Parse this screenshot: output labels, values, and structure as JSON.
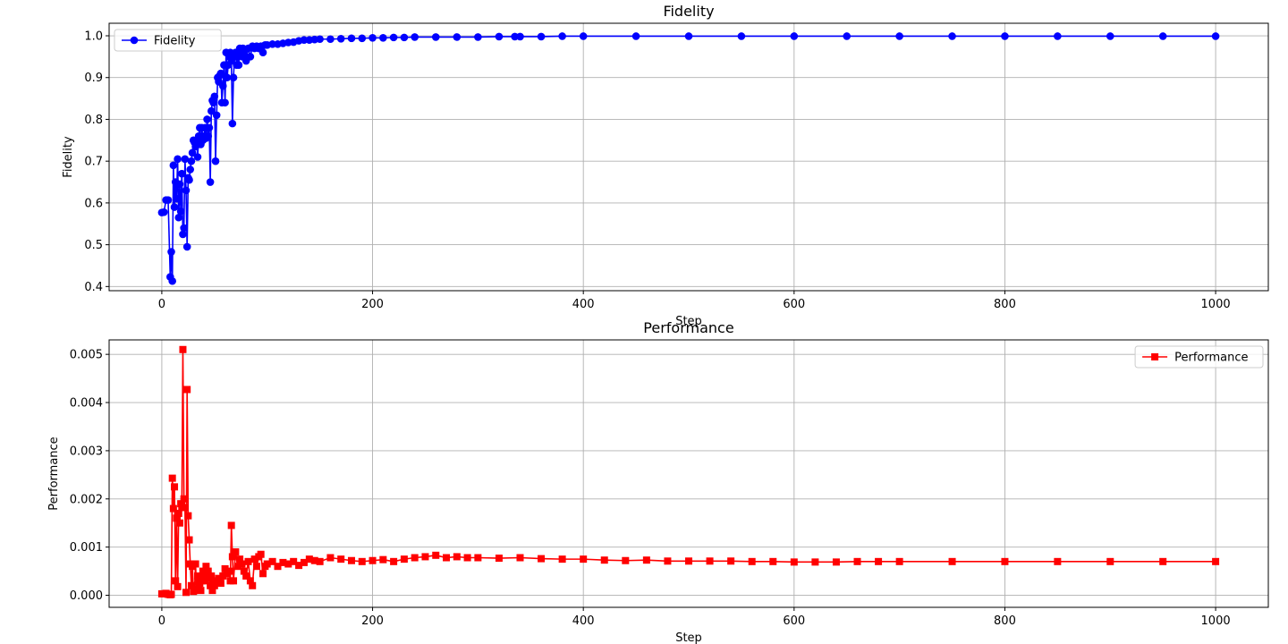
{
  "chart_data": [
    {
      "type": "line",
      "title": "Fidelity",
      "xlabel": "Step",
      "ylabel": "Fidelity",
      "xlim": [
        -50,
        1050
      ],
      "ylim": [
        0.39,
        1.03
      ],
      "xticks": [
        0,
        200,
        400,
        600,
        800,
        1000
      ],
      "yticks": [
        0.4,
        0.5,
        0.6,
        0.7,
        0.8,
        0.9,
        1.0
      ],
      "ytick_labels": [
        "0.4",
        "0.5",
        "0.6",
        "0.7",
        "0.8",
        "0.9",
        "1.0"
      ],
      "grid": true,
      "legend_position": "upper left",
      "series": [
        {
          "name": "Fidelity",
          "color": "#0000ff",
          "marker": "circle",
          "x": [
            0,
            2,
            4,
            6,
            8,
            9,
            10,
            11,
            12,
            13,
            14,
            15,
            16,
            17,
            18,
            19,
            20,
            21,
            22,
            23,
            24,
            25,
            26,
            27,
            28,
            29,
            30,
            31,
            32,
            33,
            34,
            35,
            36,
            37,
            38,
            39,
            40,
            41,
            42,
            43,
            44,
            45,
            46,
            47,
            48,
            49,
            50,
            51,
            52,
            53,
            54,
            55,
            56,
            57,
            58,
            59,
            60,
            61,
            62,
            63,
            64,
            65,
            66,
            67,
            68,
            69,
            70,
            71,
            72,
            73,
            74,
            75,
            76,
            77,
            78,
            79,
            80,
            82,
            84,
            86,
            88,
            90,
            92,
            94,
            96,
            98,
            100,
            105,
            110,
            115,
            120,
            125,
            130,
            135,
            140,
            145,
            150,
            160,
            170,
            180,
            190,
            200,
            210,
            220,
            230,
            240,
            260,
            280,
            300,
            320,
            335,
            340,
            360,
            380,
            400,
            450,
            500,
            550,
            600,
            650,
            700,
            750,
            800,
            850,
            900,
            950,
            1000
          ],
          "y": [
            0.577,
            0.578,
            0.607,
            0.607,
            0.423,
            0.483,
            0.413,
            0.69,
            0.59,
            0.65,
            0.61,
            0.705,
            0.565,
            0.645,
            0.58,
            0.67,
            0.525,
            0.54,
            0.705,
            0.63,
            0.495,
            0.66,
            0.655,
            0.68,
            0.7,
            0.72,
            0.75,
            0.745,
            0.735,
            0.75,
            0.71,
            0.76,
            0.78,
            0.74,
            0.78,
            0.75,
            0.76,
            0.78,
            0.755,
            0.8,
            0.76,
            0.78,
            0.65,
            0.82,
            0.845,
            0.84,
            0.855,
            0.7,
            0.81,
            0.9,
            0.89,
            0.905,
            0.91,
            0.84,
            0.88,
            0.93,
            0.84,
            0.96,
            0.9,
            0.93,
            0.95,
            0.96,
            0.94,
            0.79,
            0.9,
            0.95,
            0.96,
            0.93,
            0.96,
            0.93,
            0.97,
            0.96,
            0.95,
            0.97,
            0.96,
            0.965,
            0.94,
            0.97,
            0.95,
            0.975,
            0.97,
            0.975,
            0.97,
            0.975,
            0.96,
            0.978,
            0.978,
            0.98,
            0.98,
            0.982,
            0.984,
            0.985,
            0.988,
            0.99,
            0.99,
            0.991,
            0.992,
            0.992,
            0.993,
            0.994,
            0.994,
            0.995,
            0.995,
            0.996,
            0.996,
            0.997,
            0.997,
            0.997,
            0.997,
            0.998,
            0.998,
            0.998,
            0.998,
            0.999,
            0.999,
            0.999,
            0.999,
            0.999,
            0.999,
            0.999,
            0.999,
            0.999,
            0.999,
            0.999,
            0.999,
            0.999,
            0.999
          ]
        }
      ]
    },
    {
      "type": "line",
      "title": "Performance",
      "xlabel": "Step",
      "ylabel": "Performance",
      "xlim": [
        -50,
        1050
      ],
      "ylim": [
        -0.00025,
        0.0053
      ],
      "xticks": [
        0,
        200,
        400,
        600,
        800,
        1000
      ],
      "yticks": [
        0.0,
        0.001,
        0.002,
        0.003,
        0.004,
        0.005
      ],
      "ytick_labels": [
        "0.000",
        "0.001",
        "0.002",
        "0.003",
        "0.004",
        "0.005"
      ],
      "grid": true,
      "legend_position": "upper right",
      "series": [
        {
          "name": "Performance",
          "color": "#ff0000",
          "marker": "square",
          "x": [
            0,
            2,
            4,
            6,
            8,
            9,
            10,
            11,
            12,
            13,
            14,
            15,
            16,
            17,
            18,
            19,
            20,
            21,
            22,
            23,
            24,
            25,
            26,
            27,
            28,
            29,
            30,
            31,
            32,
            33,
            34,
            35,
            36,
            37,
            38,
            39,
            40,
            41,
            42,
            43,
            44,
            45,
            46,
            47,
            48,
            49,
            50,
            52,
            54,
            56,
            58,
            60,
            62,
            64,
            65,
            66,
            67,
            68,
            70,
            72,
            74,
            76,
            78,
            80,
            82,
            84,
            86,
            88,
            90,
            92,
            94,
            96,
            98,
            100,
            105,
            110,
            115,
            120,
            125,
            130,
            135,
            140,
            145,
            150,
            160,
            170,
            180,
            190,
            200,
            210,
            220,
            230,
            240,
            250,
            260,
            270,
            280,
            290,
            300,
            320,
            340,
            360,
            380,
            400,
            420,
            440,
            460,
            480,
            500,
            520,
            540,
            560,
            580,
            600,
            620,
            640,
            660,
            680,
            700,
            750,
            800,
            850,
            900,
            950,
            1000
          ],
          "y": [
            3e-05,
            3e-05,
            4e-05,
            2e-05,
            1e-05,
            2e-05,
            0.00243,
            0.0018,
            0.00225,
            0.0003,
            0.0016,
            0.00018,
            0.0017,
            0.0015,
            0.0019,
            0.00182,
            0.0051,
            0.002,
            0.00182,
            6e-05,
            0.00427,
            0.00165,
            0.00115,
            0.00065,
            0.0002,
            0.0006,
            8e-05,
            0.0001,
            0.00065,
            0.00012,
            0.0004,
            0.0002,
            0.00025,
            0.0001,
            0.0003,
            0.0005,
            0.0004,
            0.0003,
            0.0006,
            0.00045,
            0.0005,
            0.00035,
            0.0002,
            0.0004,
            0.0001,
            0.00025,
            0.0002,
            0.0003,
            0.00035,
            0.00025,
            0.0004,
            0.00055,
            0.00045,
            0.0005,
            0.0003,
            0.00145,
            0.0008,
            0.0003,
            0.0009,
            0.0006,
            0.00075,
            0.00065,
            0.0005,
            0.0004,
            0.0007,
            0.0003,
            0.0002,
            0.00075,
            0.0006,
            0.0008,
            0.00085,
            0.00045,
            0.0006,
            0.00065,
            0.0007,
            0.0006,
            0.00068,
            0.00065,
            0.0007,
            0.00062,
            0.00068,
            0.00075,
            0.00072,
            0.0007,
            0.00078,
            0.00075,
            0.00072,
            0.0007,
            0.00072,
            0.00074,
            0.0007,
            0.00075,
            0.00078,
            0.0008,
            0.00083,
            0.00078,
            0.0008,
            0.00078,
            0.00078,
            0.00077,
            0.00078,
            0.00076,
            0.00075,
            0.00075,
            0.00073,
            0.00072,
            0.00073,
            0.00071,
            0.00071,
            0.00071,
            0.00071,
            0.0007,
            0.0007,
            0.00069,
            0.00069,
            0.00069,
            0.0007,
            0.0007,
            0.0007,
            0.0007,
            0.0007,
            0.0007,
            0.0007,
            0.0007,
            0.0007
          ]
        }
      ]
    }
  ]
}
